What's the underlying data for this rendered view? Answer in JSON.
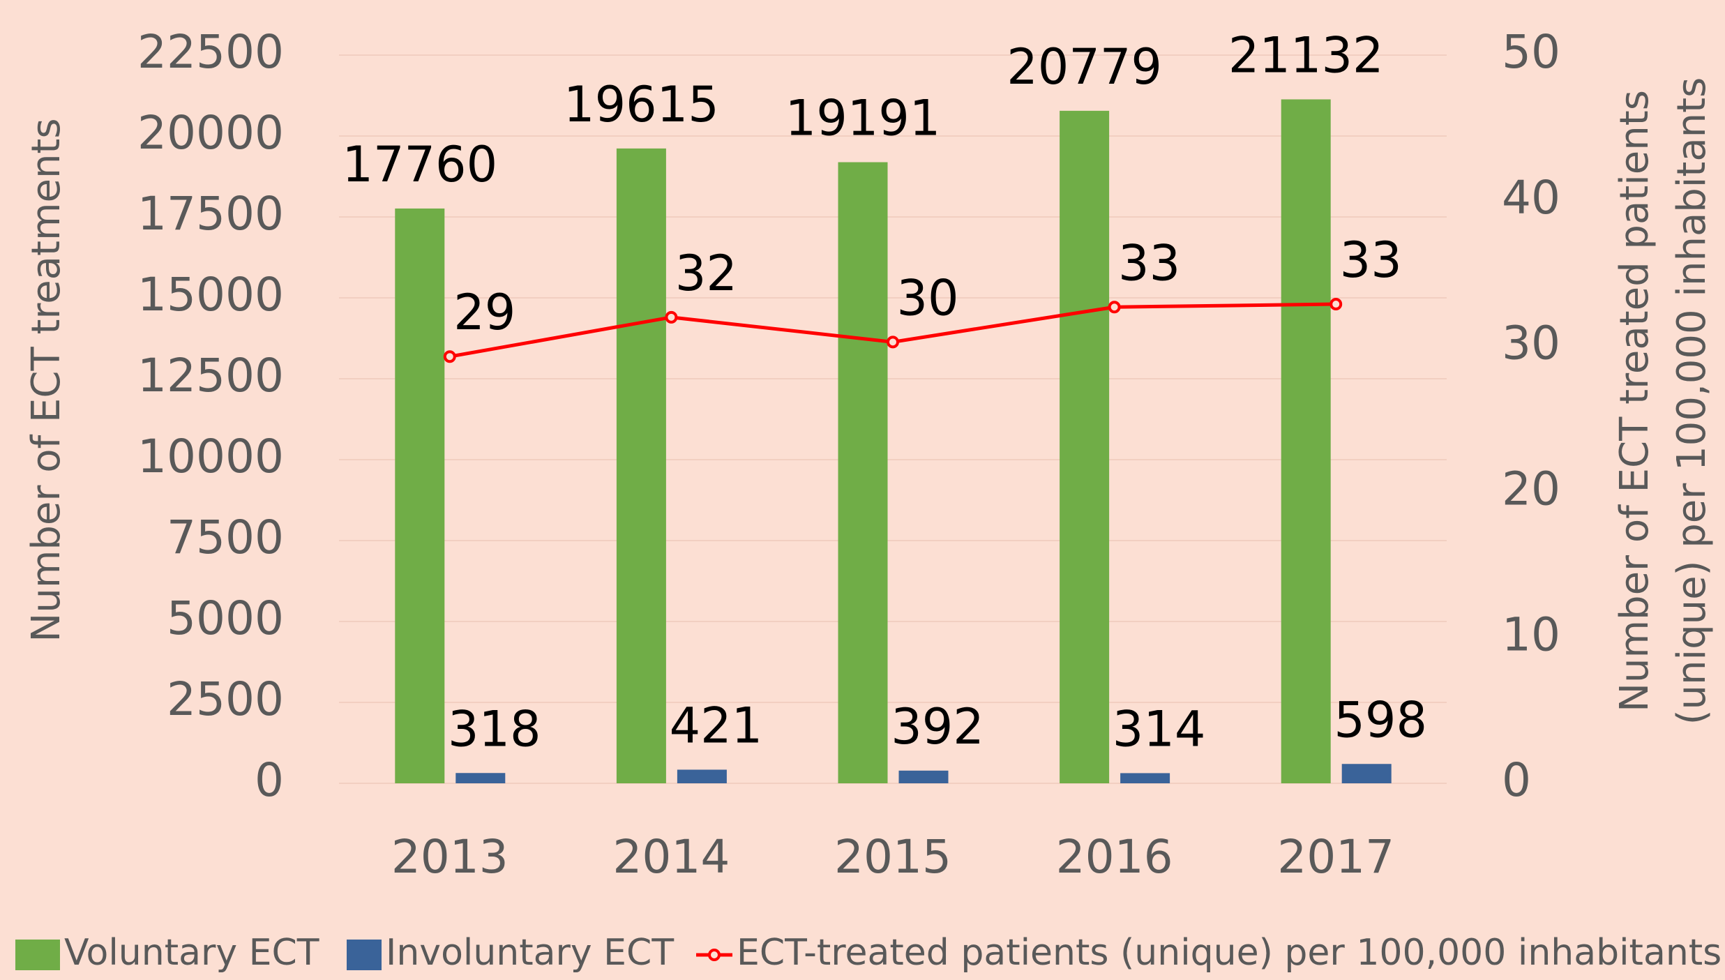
{
  "chart_data": {
    "type": "bar",
    "y_label": "Number of ECT treatments",
    "y2_label": [
      "Number of ECT treated patients",
      "(unique) per 100,000 inhabitants"
    ],
    "categories": [
      "2013",
      "2014",
      "2015",
      "2016",
      "2017"
    ],
    "series": [
      {
        "name": "Voluntary ECT",
        "type": "bar",
        "color": "#70ad47",
        "values": [
          17760,
          19615,
          19191,
          20779,
          21132
        ]
      },
      {
        "name": "Involuntary ECT",
        "type": "bar",
        "color": "#3a6399",
        "values": [
          318,
          421,
          392,
          314,
          598
        ]
      },
      {
        "name": "ECT-treated patients (unique) per 100,000 inhabitants",
        "type": "line",
        "axis": "y2",
        "color": "#ff0000",
        "values": [
          29.3,
          32,
          30.3,
          32.7,
          32.9
        ],
        "value_labels": [
          "29",
          "32",
          "30",
          "33",
          "33"
        ]
      }
    ],
    "ylim": [
      0,
      22500
    ],
    "yticks": [
      0,
      2500,
      5000,
      7500,
      10000,
      12500,
      15000,
      17500,
      20000,
      22500
    ],
    "y2lim": [
      0,
      50
    ],
    "y2ticks": [
      0,
      10,
      20,
      30,
      40,
      50
    ],
    "grid": true,
    "legend": "bottom"
  }
}
